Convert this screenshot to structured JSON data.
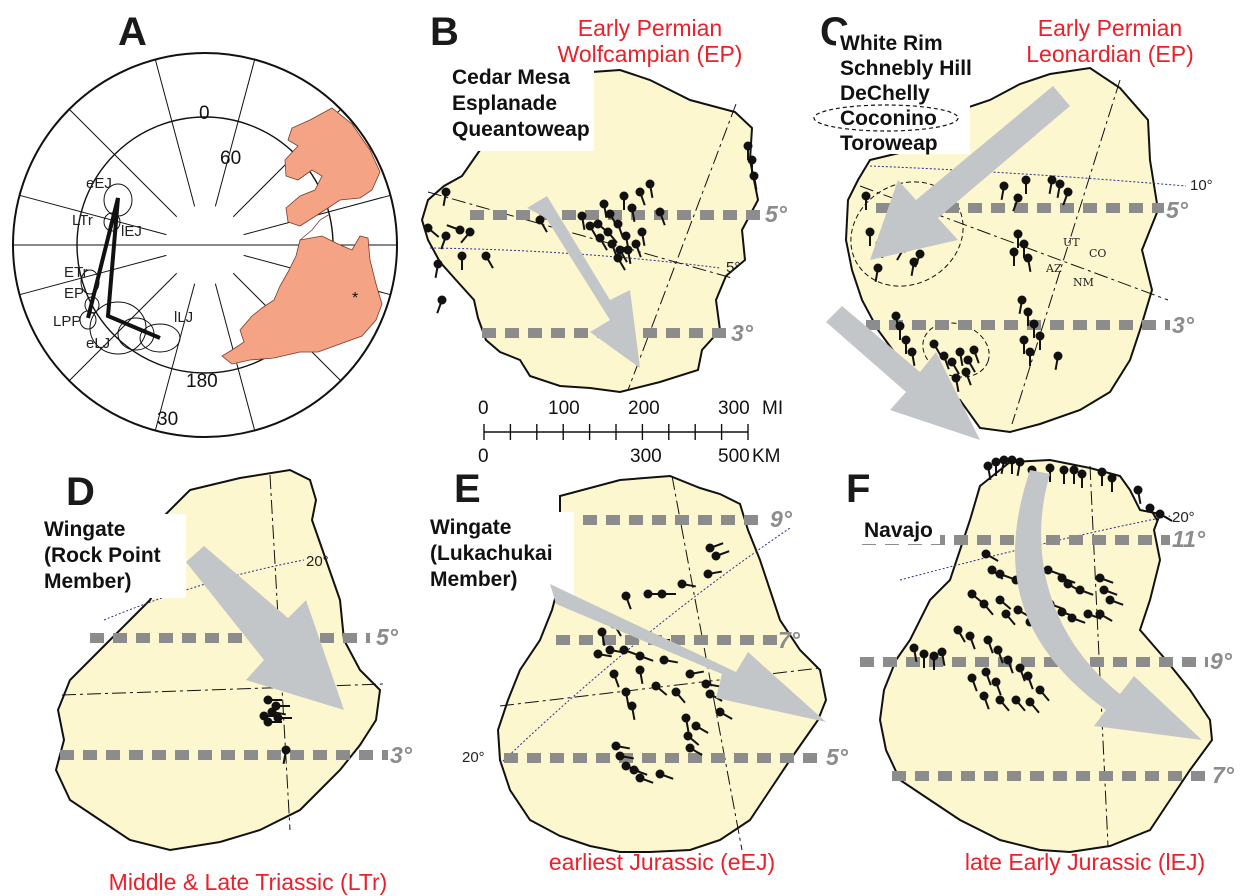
{
  "panels": {
    "A": {
      "letter": "A",
      "labels": {
        "deg0": "0",
        "deg60": "60",
        "deg180": "180",
        "deg30": "30",
        "eEJ": "eEJ",
        "LTr": "LTr",
        "lEJ": "lEJ",
        "ETr": "ETr",
        "EP": "EP",
        "LPP": "LPP",
        "eLJ": "eLJ",
        "lLJ": "lLJ"
      }
    },
    "B": {
      "letter": "B",
      "title1": "Early Permian",
      "title2": "Wolfcampian (EP)",
      "formations": [
        "Cedar Mesa",
        "Esplanade",
        "Queantoweap"
      ],
      "lat_a": "5°",
      "lat_b": "3°",
      "dotted": "5°"
    },
    "C": {
      "letter": "C",
      "title1": "Early Permian",
      "title2": "Leonardian (EP)",
      "formations": [
        "White Rim",
        "Schnebly Hill",
        "DeChelly",
        "Coconino",
        "Toroweap"
      ],
      "lat_a": "5°",
      "lat_b": "3°",
      "dotted": "10°",
      "states": [
        "UT",
        "CO",
        "AZ",
        "NM"
      ]
    },
    "D": {
      "letter": "D",
      "formation": [
        "Wingate",
        "(Rock Point",
        "Member)"
      ],
      "lat_a": "5°",
      "lat_b": "3°",
      "dotted": "20°",
      "title": "Middle & Late Triassic (LTr)"
    },
    "E": {
      "letter": "E",
      "formation": [
        "Wingate",
        "(Lukachukai",
        "Member)"
      ],
      "lat_a": "9°",
      "lat_b": "7°",
      "lat_c": "5°",
      "dotted": "20°",
      "title": "earliest Jurassic (eEJ)"
    },
    "F": {
      "letter": "F",
      "formation": "Navajo",
      "lat_a": "11°",
      "lat_b": "9°",
      "lat_c": "7°",
      "dotted": "20°",
      "title": "late Early Jurassic (lEJ)"
    }
  },
  "scale_bar": {
    "mi": [
      "0",
      "100",
      "200",
      "300"
    ],
    "mi_unit": "MI",
    "km": [
      "0",
      "300",
      "500"
    ],
    "km_unit": "KM"
  },
  "colors": {
    "map_fill": "#fdf7cf",
    "continent": "#f4a385",
    "red_title": "#e8212a",
    "band": "#8c8c8c",
    "arrow": "#c3c6c9"
  }
}
